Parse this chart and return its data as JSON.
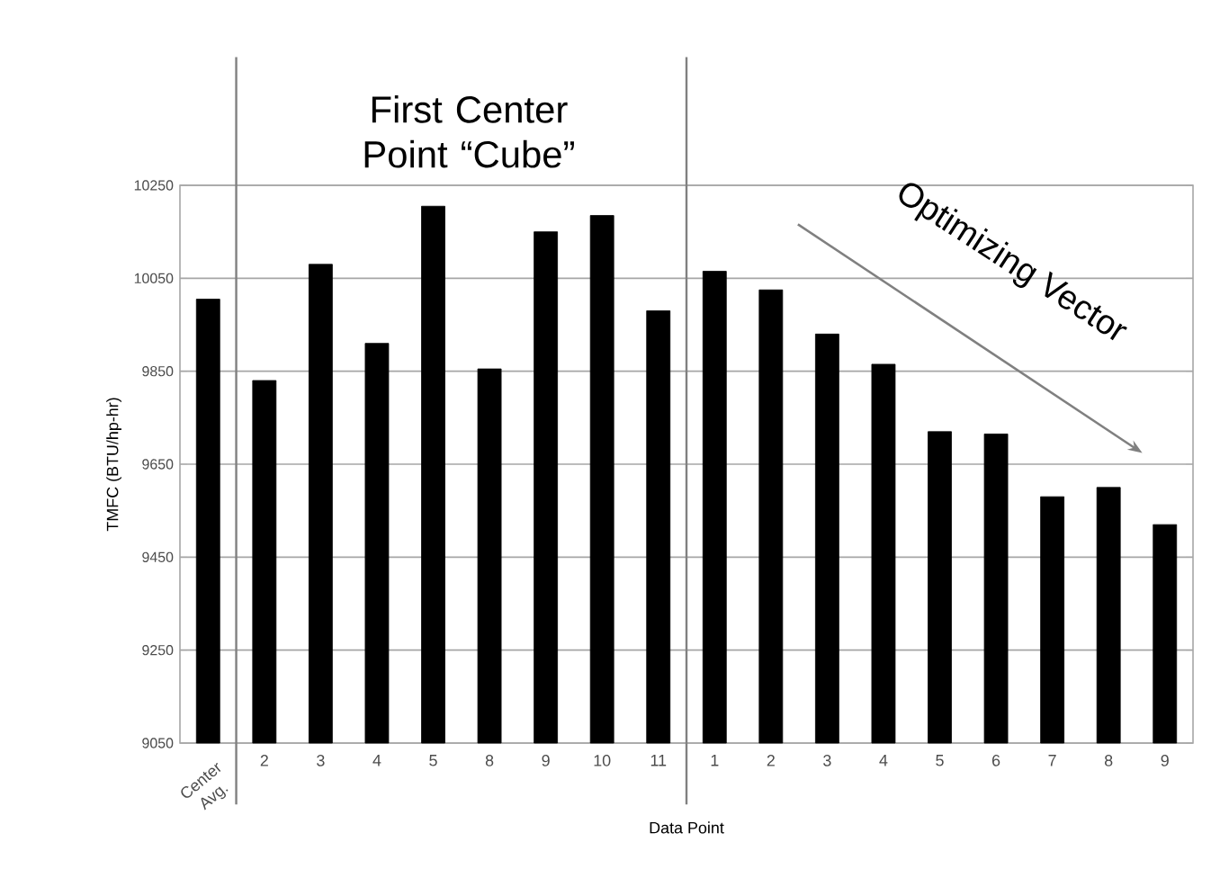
{
  "chart_data": {
    "type": "bar",
    "xlabel": "Data Point",
    "ylabel": "TMFC (BTU/hp-hr)",
    "categories": [
      "Center Avg.",
      "2",
      "3",
      "4",
      "5",
      "8",
      "9",
      "10",
      "11",
      "1",
      "2",
      "3",
      "4",
      "5",
      "6",
      "7",
      "8",
      "9"
    ],
    "values": [
      10005,
      9830,
      10080,
      9910,
      10205,
      9855,
      10150,
      10185,
      9980,
      10065,
      10025,
      9930,
      9865,
      9720,
      9715,
      9580,
      9600,
      9520
    ],
    "color": "#000000",
    "ylim": [
      9050,
      10250
    ],
    "yticks": [
      9050,
      9250,
      9450,
      9650,
      9850,
      10050,
      10250
    ],
    "grid": "y",
    "annotations": [
      "First Center Point “Cube”",
      "Optimizing Vector"
    ]
  }
}
